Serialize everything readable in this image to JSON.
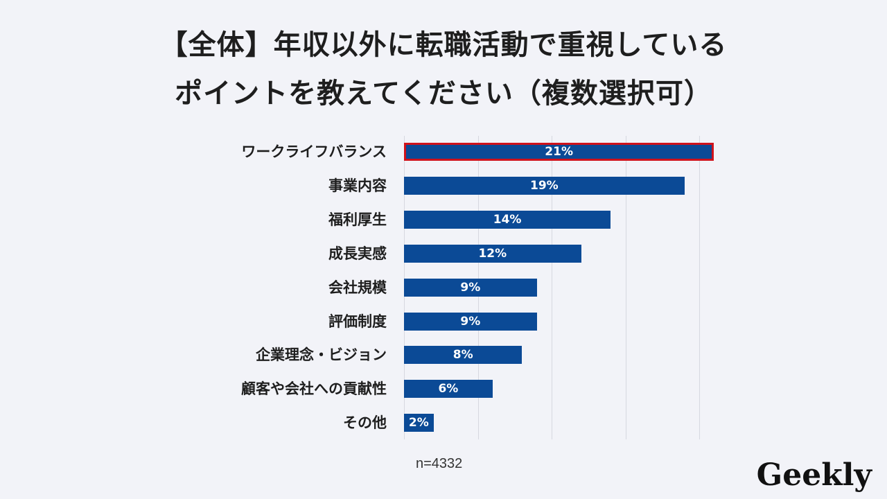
{
  "title": {
    "line1": "【全体】年収以外に転職活動で重視している",
    "line2": "ポイントを教えてください（複数選択可）"
  },
  "sample_note": "n=4332",
  "logo": "Geekly",
  "colors": {
    "bar": "#0b4a96",
    "highlight_border": "#d0121b",
    "background": "#f2f3f8"
  },
  "chart_data": {
    "type": "bar",
    "orientation": "horizontal",
    "title": "【全体】年収以外に転職活動で重視しているポイントを教えてください（複数選択可）",
    "categories": [
      "ワークライフバランス",
      "事業内容",
      "福利厚生",
      "成長実感",
      "会社規模",
      "評価制度",
      "企業理念・ビジョン",
      "顧客や会社への貢献性",
      "その他"
    ],
    "values": [
      21,
      19,
      14,
      12,
      9,
      9,
      8,
      6,
      2
    ],
    "value_labels": [
      "21%",
      "19%",
      "14%",
      "12%",
      "9%",
      "9%",
      "8%",
      "6%",
      "2%"
    ],
    "unit": "%",
    "xlim": [
      0,
      25
    ],
    "grid_ticks": [
      0,
      5,
      10,
      15,
      20
    ],
    "grid": true,
    "highlighted_category": "ワークライフバランス",
    "xlabel": "",
    "ylabel": ""
  }
}
